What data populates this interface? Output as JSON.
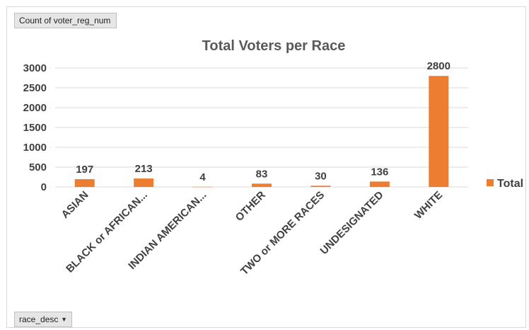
{
  "pivot": {
    "value_field": "Count of voter_reg_num",
    "axis_field": "race_desc"
  },
  "chart_data": {
    "type": "bar",
    "title": "Total Voters per Race",
    "categories": [
      "ASIAN",
      "BLACK or AFRICAN...",
      "INDIAN AMERICAN...",
      "OTHER",
      "TWO or MORE RACES",
      "UNDESIGNATED",
      "WHITE"
    ],
    "series": [
      {
        "name": "Total",
        "values": [
          197,
          213,
          4,
          83,
          30,
          136,
          2800
        ],
        "color": "#ed7d31"
      }
    ],
    "ylim": [
      0,
      3000
    ],
    "yticks": [
      0,
      500,
      1000,
      1500,
      2000,
      2500,
      3000
    ],
    "grid": true,
    "legend": "right",
    "xlabel": "",
    "ylabel": ""
  }
}
